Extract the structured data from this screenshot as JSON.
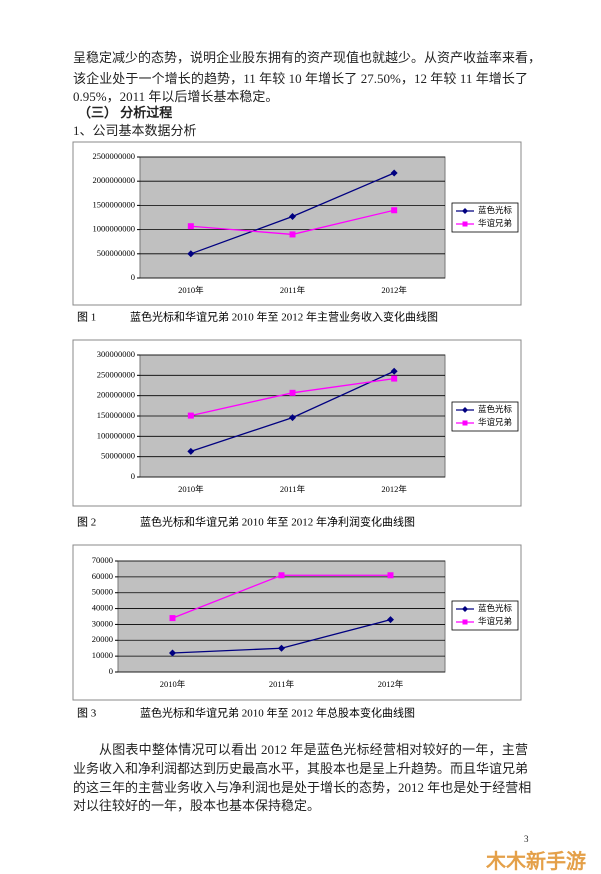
{
  "intro": [
    "呈稳定减少的态势，说明企业股东拥有的资产现值也就越少。从资产收益率来看，",
    "该企业处于一个增长的趋势，11 年较 10 年增长了 27.50%，12 年较 11 年增长了",
    "0.95%，2011 年以后增长基本稳定。"
  ],
  "section": "（三） 分析过程",
  "subsection": "1、公司基本数据分析",
  "figures": [
    {
      "label": "图 1",
      "caption": "蓝色光标和华谊兄弟 2010 年至 2012 年主营业务收入变化曲线图"
    },
    {
      "label": "图 2",
      "caption": "蓝色光标和华谊兄弟 2010 年至 2012 年净利润变化曲线图"
    },
    {
      "label": "图 3",
      "caption": "蓝色光标和华谊兄弟 2010 年至 2012 年总股本变化曲线图"
    }
  ],
  "conclusion": [
    "从图表中整体情况可以看出 2012 年是蓝色光标经营相对较好的一年，主营",
    "业务收入和净利润都达到历史最高水平，其股本也是呈上升趋势。而且华谊兄弟",
    "的这三年的主营业务收入与净利润也是处于增长的态势，2012 年也是处于经营相",
    "对以往较好的一年，股本也基本保持稳定。"
  ],
  "page_number": "3",
  "watermark": "木木新手游",
  "chart_data": [
    {
      "type": "line",
      "categories": [
        "2010年",
        "2011年",
        "2012年"
      ],
      "ylim": [
        0,
        2500000000
      ],
      "yticks": [
        0,
        500000000,
        1000000000,
        1500000000,
        2000000000,
        2500000000
      ],
      "grid": true,
      "legend": "right",
      "series": [
        {
          "name": "蓝色光标",
          "color": "#000080",
          "marker": "diamond",
          "values": [
            500000000,
            1270000000,
            2170000000
          ]
        },
        {
          "name": "华谊兄弟",
          "color": "#ff00ff",
          "marker": "square",
          "values": [
            1070000000,
            900000000,
            1400000000
          ]
        }
      ]
    },
    {
      "type": "line",
      "categories": [
        "2010年",
        "2011年",
        "2012年"
      ],
      "ylim": [
        0,
        300000000
      ],
      "yticks": [
        0,
        50000000,
        100000000,
        150000000,
        200000000,
        250000000,
        300000000
      ],
      "grid": true,
      "legend": "right",
      "series": [
        {
          "name": "蓝色光标",
          "color": "#000080",
          "marker": "diamond",
          "values": [
            63000000,
            146000000,
            260000000
          ]
        },
        {
          "name": "华谊兄弟",
          "color": "#ff00ff",
          "marker": "square",
          "values": [
            151000000,
            207000000,
            242000000
          ]
        }
      ]
    },
    {
      "type": "line",
      "categories": [
        "2010年",
        "2011年",
        "2012年"
      ],
      "ylim": [
        0,
        70000
      ],
      "yticks": [
        0,
        10000,
        20000,
        30000,
        40000,
        50000,
        60000,
        70000
      ],
      "grid": true,
      "legend": "right",
      "series": [
        {
          "name": "蓝色光标",
          "color": "#000080",
          "marker": "diamond",
          "values": [
            12000,
            15000,
            33000
          ]
        },
        {
          "name": "华谊兄弟",
          "color": "#ff00ff",
          "marker": "square",
          "values": [
            34000,
            61000,
            61000
          ]
        }
      ]
    }
  ]
}
